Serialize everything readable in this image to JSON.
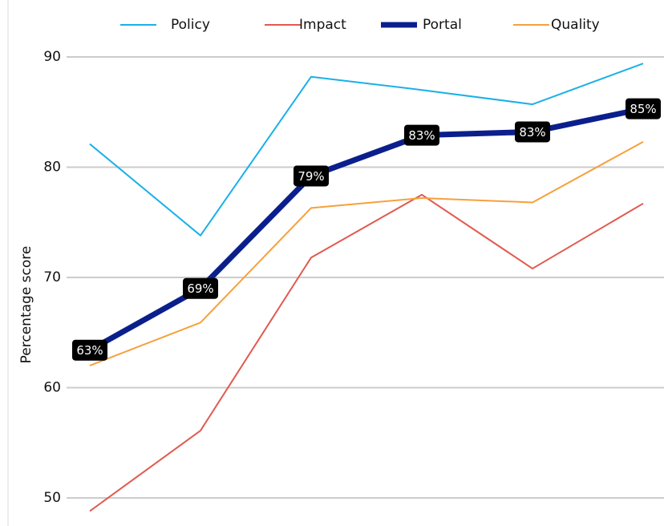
{
  "chart_data": {
    "type": "line",
    "y_label": "Percentage score",
    "categories": [
      null,
      null,
      null,
      null,
      null,
      null
    ],
    "series": [
      {
        "name": "Policy",
        "color": "#1ab0e8",
        "values": [
          82.1,
          73.8,
          88.2,
          87.0,
          85.7,
          89.4
        ]
      },
      {
        "name": "Impact",
        "color": "#e05a4f",
        "values": [
          48.8,
          56.1,
          71.8,
          77.5,
          70.8,
          76.7
        ]
      },
      {
        "name": "Portal",
        "color": "#0b1f8c",
        "values": [
          63.4,
          69.0,
          79.2,
          82.9,
          83.2,
          85.3
        ],
        "value_labels": [
          "63%",
          "69%",
          "79%",
          "83%",
          "83%",
          "85%"
        ]
      },
      {
        "name": "Quality",
        "color": "#f7a03c",
        "values": [
          62.0,
          65.9,
          76.3,
          77.2,
          76.8,
          82.3
        ]
      }
    ],
    "ylim": [
      47.45,
      95.16
    ],
    "yticks": [
      50,
      60,
      70,
      80,
      90
    ],
    "grid": true
  }
}
